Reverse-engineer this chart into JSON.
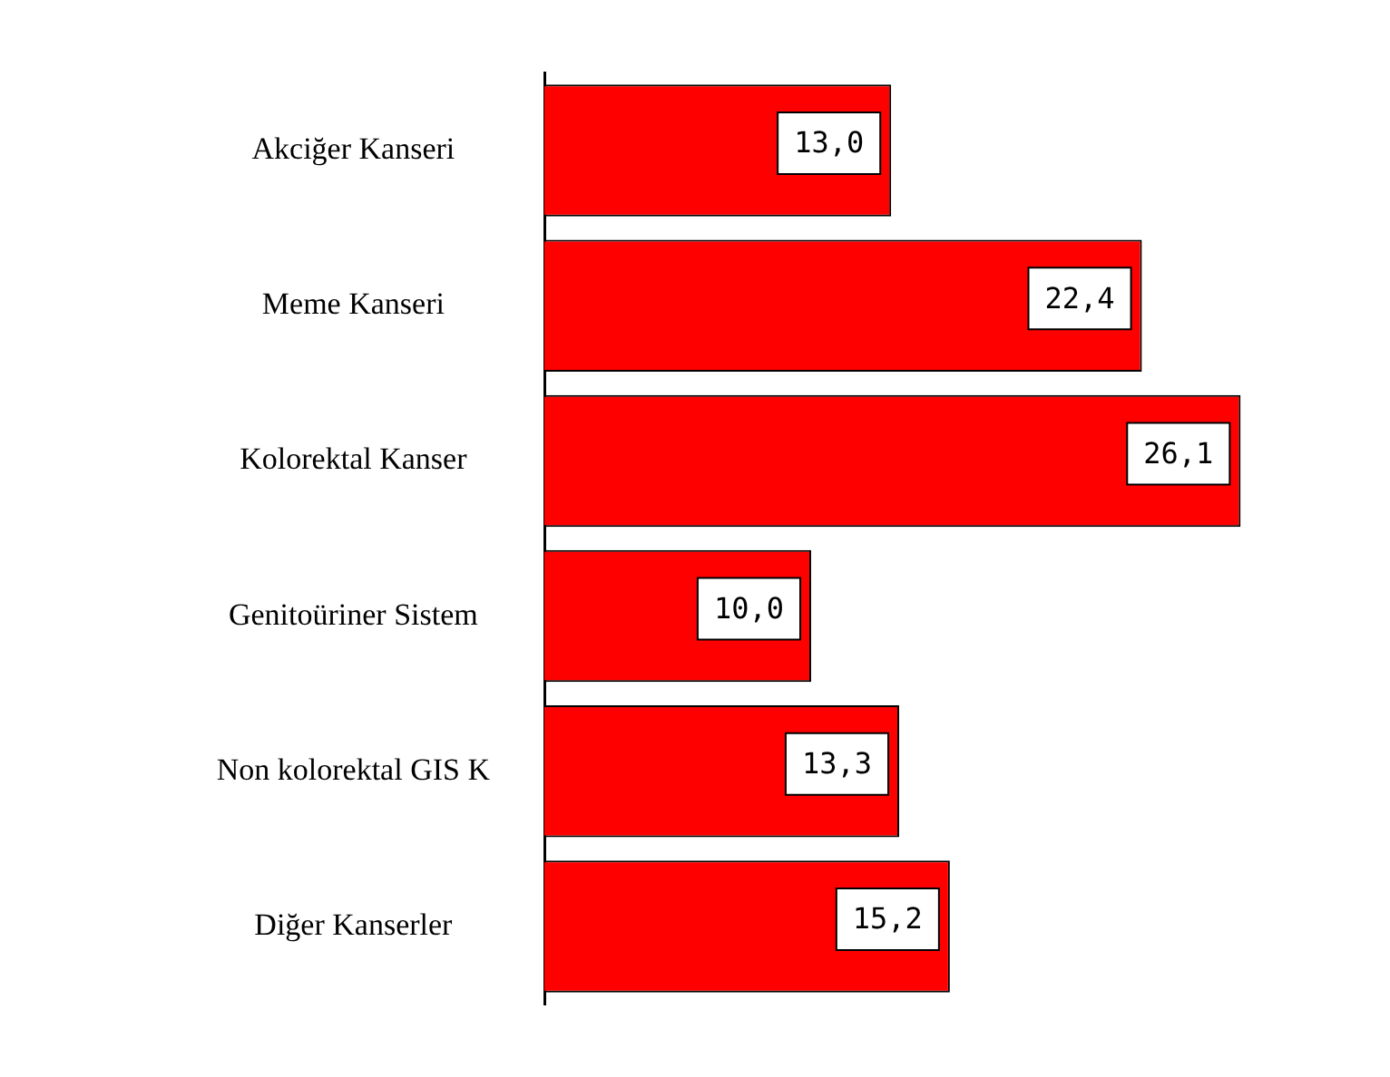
{
  "chart_data": {
    "type": "bar",
    "orientation": "horizontal",
    "categories": [
      "Akciğer Kanseri",
      "Meme Kanseri",
      "Kolorektal Kanser",
      "Genitoüriner Sistem",
      "Non kolorektal GIS K",
      "Diğer Kanserler"
    ],
    "values": [
      13.0,
      22.4,
      26.1,
      10.0,
      13.3,
      15.2
    ],
    "value_labels": [
      "13,0",
      "22,4",
      "26,1",
      "10,0",
      "13,3",
      "15,2"
    ],
    "color": "#ff0000",
    "legend": false,
    "tick_labels": "y"
  }
}
